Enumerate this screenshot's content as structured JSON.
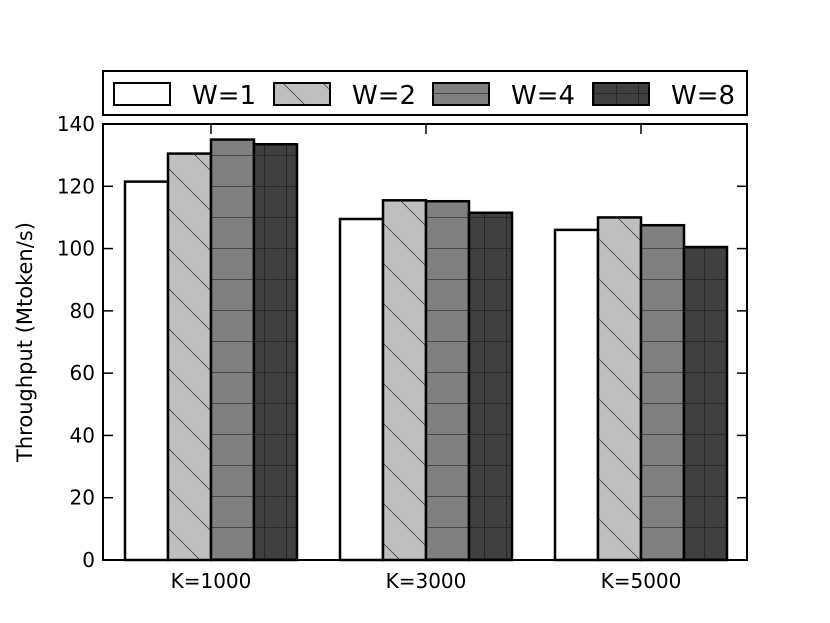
{
  "chart_data": {
    "type": "bar",
    "ylabel": "Throughput (Mtoken/s)",
    "xlabel": "",
    "ylim": [
      0,
      140
    ],
    "yticks": [
      0,
      20,
      40,
      60,
      80,
      100,
      120,
      140
    ],
    "categories": [
      "K=1000",
      "K=3000",
      "K=5000"
    ],
    "legend_position": "top",
    "grid": false,
    "series": [
      {
        "name": "W=1",
        "values": [
          121.5,
          109.5,
          106
        ],
        "color": "#ffffff",
        "hatch": "none"
      },
      {
        "name": "W=2",
        "values": [
          130.5,
          115.5,
          110
        ],
        "color": "#bfbfbf",
        "hatch": "backslash"
      },
      {
        "name": "W=4",
        "values": [
          135,
          115.2,
          107.5
        ],
        "color": "#808080",
        "hatch": "horizontal"
      },
      {
        "name": "W=8",
        "values": [
          133.5,
          111.5,
          100.5
        ],
        "color": "#404040",
        "hatch": "grid"
      }
    ]
  }
}
